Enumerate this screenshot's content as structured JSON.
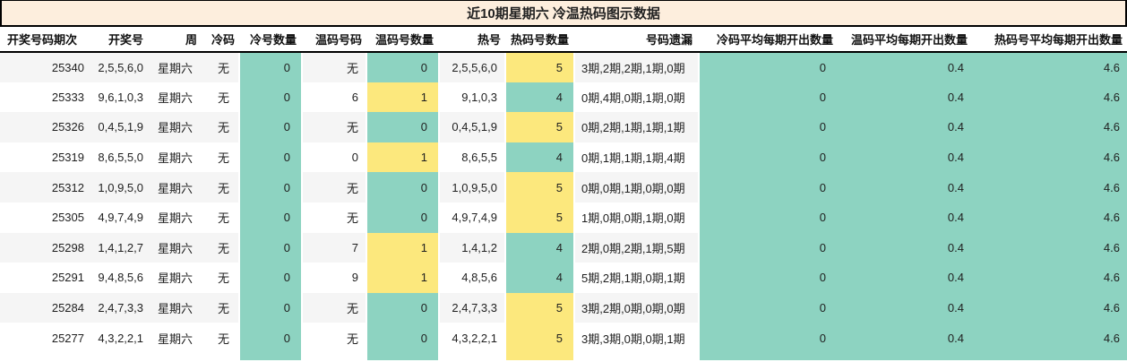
{
  "title": "近10期星期六 冷温热码图示数据",
  "colors": {
    "teal": "#8dd3c1",
    "yellow": "#fce87d",
    "title_bg": "#fdeedd",
    "stripe": "#f5f5f5",
    "border": "#000000"
  },
  "table": {
    "columns": [
      {
        "id": "period",
        "label": "开奖号码期次"
      },
      {
        "id": "numbers",
        "label": "开奖号"
      },
      {
        "id": "week",
        "label": "周"
      },
      {
        "id": "cold",
        "label": "冷码"
      },
      {
        "id": "cold_count",
        "label": "冷号数量"
      },
      {
        "id": "warm",
        "label": "温码号码"
      },
      {
        "id": "warm_count",
        "label": "温码号数量"
      },
      {
        "id": "hot",
        "label": "热号"
      },
      {
        "id": "hot_count",
        "label": "热码号数量"
      },
      {
        "id": "omission",
        "label": "号码遗漏"
      },
      {
        "id": "cold_avg",
        "label": "冷码平均每期开出数量"
      },
      {
        "id": "warm_avg",
        "label": "温码平均每期开出数量"
      },
      {
        "id": "hot_avg",
        "label": "热码号平均每期开出数量"
      }
    ],
    "rows": [
      {
        "period": "25340",
        "numbers": "2,5,5,6,0",
        "week": "星期六",
        "cold": "无",
        "cold_count": "0",
        "warm": "无",
        "warm_count": "0",
        "hot": "2,5,5,6,0",
        "hot_count": "5",
        "omission": "3期,2期,2期,1期,0期",
        "cold_avg": "0",
        "warm_avg": "0.4",
        "hot_avg": "4.6"
      },
      {
        "period": "25333",
        "numbers": "9,6,1,0,3",
        "week": "星期六",
        "cold": "无",
        "cold_count": "0",
        "warm": "6",
        "warm_count": "1",
        "hot": "9,1,0,3",
        "hot_count": "4",
        "omission": "0期,4期,0期,1期,0期",
        "cold_avg": "0",
        "warm_avg": "0.4",
        "hot_avg": "4.6"
      },
      {
        "period": "25326",
        "numbers": "0,4,5,1,9",
        "week": "星期六",
        "cold": "无",
        "cold_count": "0",
        "warm": "无",
        "warm_count": "0",
        "hot": "0,4,5,1,9",
        "hot_count": "5",
        "omission": "0期,2期,1期,1期,1期",
        "cold_avg": "0",
        "warm_avg": "0.4",
        "hot_avg": "4.6"
      },
      {
        "period": "25319",
        "numbers": "8,6,5,5,0",
        "week": "星期六",
        "cold": "无",
        "cold_count": "0",
        "warm": "0",
        "warm_count": "1",
        "hot": "8,6,5,5",
        "hot_count": "4",
        "omission": "0期,1期,1期,1期,4期",
        "cold_avg": "0",
        "warm_avg": "0.4",
        "hot_avg": "4.6"
      },
      {
        "period": "25312",
        "numbers": "1,0,9,5,0",
        "week": "星期六",
        "cold": "无",
        "cold_count": "0",
        "warm": "无",
        "warm_count": "0",
        "hot": "1,0,9,5,0",
        "hot_count": "5",
        "omission": "0期,0期,1期,0期,0期",
        "cold_avg": "0",
        "warm_avg": "0.4",
        "hot_avg": "4.6"
      },
      {
        "period": "25305",
        "numbers": "4,9,7,4,9",
        "week": "星期六",
        "cold": "无",
        "cold_count": "0",
        "warm": "无",
        "warm_count": "0",
        "hot": "4,9,7,4,9",
        "hot_count": "5",
        "omission": "1期,0期,0期,1期,0期",
        "cold_avg": "0",
        "warm_avg": "0.4",
        "hot_avg": "4.6"
      },
      {
        "period": "25298",
        "numbers": "1,4,1,2,7",
        "week": "星期六",
        "cold": "无",
        "cold_count": "0",
        "warm": "7",
        "warm_count": "1",
        "hot": "1,4,1,2",
        "hot_count": "4",
        "omission": "2期,0期,2期,1期,5期",
        "cold_avg": "0",
        "warm_avg": "0.4",
        "hot_avg": "4.6"
      },
      {
        "period": "25291",
        "numbers": "9,4,8,5,6",
        "week": "星期六",
        "cold": "无",
        "cold_count": "0",
        "warm": "9",
        "warm_count": "1",
        "hot": "4,8,5,6",
        "hot_count": "4",
        "omission": "5期,2期,1期,0期,1期",
        "cold_avg": "0",
        "warm_avg": "0.4",
        "hot_avg": "4.6"
      },
      {
        "period": "25284",
        "numbers": "2,4,7,3,3",
        "week": "星期六",
        "cold": "无",
        "cold_count": "0",
        "warm": "无",
        "warm_count": "0",
        "hot": "2,4,7,3,3",
        "hot_count": "5",
        "omission": "3期,2期,0期,0期,0期",
        "cold_avg": "0",
        "warm_avg": "0.4",
        "hot_avg": "4.6"
      },
      {
        "period": "25277",
        "numbers": "4,3,2,2,1",
        "week": "星期六",
        "cold": "无",
        "cold_count": "0",
        "warm": "无",
        "warm_count": "0",
        "hot": "4,3,2,2,1",
        "hot_count": "5",
        "omission": "3期,3期,0期,0期,1期",
        "cold_avg": "0",
        "warm_avg": "0.4",
        "hot_avg": "4.6"
      }
    ]
  },
  "color_rules": {
    "cold_count": {
      "default": "teal"
    },
    "warm_count": {
      "0": "teal",
      "1": "yellow"
    },
    "hot_count": {
      "4": "teal",
      "5": "yellow"
    },
    "cold_avg": {
      "default": "teal"
    },
    "warm_avg": {
      "default": "teal"
    },
    "hot_avg": {
      "default": "teal"
    }
  },
  "avg_column_ids": [
    "cold_avg",
    "warm_avg",
    "hot_avg"
  ],
  "chart_data": {
    "type": "table",
    "title": "近10期星期六 冷温热码图示数据",
    "columns": [
      "开奖号码期次",
      "开奖号",
      "周",
      "冷码",
      "冷号数量",
      "温码号码",
      "温码号数量",
      "热号",
      "热码号数量",
      "号码遗漏",
      "冷码平均每期开出数量",
      "温码平均每期开出数量",
      "热码号平均每期开出数量"
    ],
    "rows": [
      [
        "25340",
        "2,5,5,6,0",
        "星期六",
        "无",
        "0",
        "无",
        "0",
        "2,5,5,6,0",
        "5",
        "3期,2期,2期,1期,0期",
        "0",
        "0.4",
        "4.6"
      ],
      [
        "25333",
        "9,6,1,0,3",
        "星期六",
        "无",
        "0",
        "6",
        "1",
        "9,1,0,3",
        "4",
        "0期,4期,0期,1期,0期",
        "0",
        "0.4",
        "4.6"
      ],
      [
        "25326",
        "0,4,5,1,9",
        "星期六",
        "无",
        "0",
        "无",
        "0",
        "0,4,5,1,9",
        "5",
        "0期,2期,1期,1期,1期",
        "0",
        "0.4",
        "4.6"
      ],
      [
        "25319",
        "8,6,5,5,0",
        "星期六",
        "无",
        "0",
        "0",
        "1",
        "8,6,5,5",
        "4",
        "0期,1期,1期,1期,4期",
        "0",
        "0.4",
        "4.6"
      ],
      [
        "25312",
        "1,0,9,5,0",
        "星期六",
        "无",
        "0",
        "无",
        "0",
        "1,0,9,5,0",
        "5",
        "0期,0期,1期,0期,0期",
        "0",
        "0.4",
        "4.6"
      ],
      [
        "25305",
        "4,9,7,4,9",
        "星期六",
        "无",
        "0",
        "无",
        "0",
        "4,9,7,4,9",
        "5",
        "1期,0期,0期,1期,0期",
        "0",
        "0.4",
        "4.6"
      ],
      [
        "25298",
        "1,4,1,2,7",
        "星期六",
        "无",
        "0",
        "7",
        "1",
        "1,4,1,2",
        "4",
        "2期,0期,2期,1期,5期",
        "0",
        "0.4",
        "4.6"
      ],
      [
        "25291",
        "9,4,8,5,6",
        "星期六",
        "无",
        "0",
        "9",
        "1",
        "4,8,5,6",
        "4",
        "5期,2期,1期,0期,1期",
        "0",
        "0.4",
        "4.6"
      ],
      [
        "25284",
        "2,4,7,3,3",
        "星期六",
        "无",
        "0",
        "无",
        "0",
        "2,4,7,3,3",
        "5",
        "3期,2期,0期,0期,0期",
        "0",
        "0.4",
        "4.6"
      ],
      [
        "25277",
        "4,3,2,2,1",
        "星期六",
        "无",
        "0",
        "无",
        "0",
        "4,3,2,2,1",
        "5",
        "3期,3期,0期,0期,1期",
        "0",
        "0.4",
        "4.6"
      ]
    ],
    "legend_hint": "teal highlight = 冷/温(0)/热(4) counts and averages block; yellow highlight = 温码号数量=1 or 热码号数量=5",
    "grid": false
  }
}
